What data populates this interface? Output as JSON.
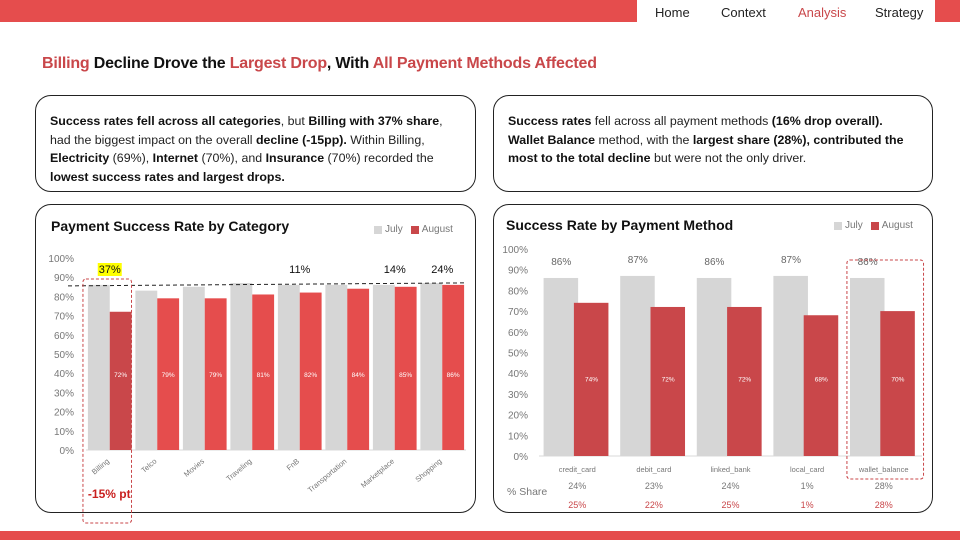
{
  "nav": {
    "items": [
      {
        "label": "Home",
        "active": false
      },
      {
        "label": "Context",
        "active": false
      },
      {
        "label": "Analysis",
        "active": true
      },
      {
        "label": "Strategy",
        "active": false
      }
    ]
  },
  "headline": {
    "part1": "Billing",
    "part2": " Decline Drove the ",
    "part3": "Largest Drop",
    "part4": ", With ",
    "part5": "All Payment Methods Affected"
  },
  "insight_left": {
    "s1_bold": "Success rates fell across all categories",
    "s1_text": ", but ",
    "s2_bold": "Billing  with 37% share",
    "s2_text": ", had the biggest impact on the overall ",
    "s3_bold": "decline (-15pp).",
    "s3_text": " Within Billing, ",
    "s4_bold": "Electricity",
    "s4_text": " (69%), ",
    "s5_bold": "Internet",
    "s5_text": " (70%), and ",
    "s6_bold": "Insurance",
    "s6_text": " (70%) recorded the ",
    "s7_bold": "lowest success rates and largest drops."
  },
  "insight_right": {
    "s1_bold": "Success rates",
    "s1_text": " fell across all payment methods ",
    "s2_bold": "(16% drop overall).",
    "s3_bold": "Wallet Balance",
    "s3_text": " method, with the ",
    "s4_bold": "largest share (28%), contributed the most to the total decline",
    "s4_text": " but were not the only driver."
  },
  "colors": {
    "brand": "#e54d4d",
    "accent_text": "#c9474a",
    "july": "#d6d6d6",
    "august": "#e54d4d",
    "august_dark": "#c9474a",
    "highlight": "#ffff00"
  },
  "chart_data": [
    {
      "type": "bar",
      "title": "Payment Success Rate by Category",
      "categories": [
        "Billing",
        "Telco",
        "Movies",
        "Traveling",
        "FnB",
        "Transportation",
        "Marketplace",
        "Shopping"
      ],
      "series": [
        {
          "name": "July",
          "values": [
            86,
            83,
            85,
            87,
            86,
            86,
            86,
            87
          ]
        },
        {
          "name": "August",
          "values": [
            72,
            79,
            79,
            81,
            82,
            84,
            85,
            86
          ]
        }
      ],
      "data_labels_august": [
        "72%",
        "79%",
        "79%",
        "81%",
        "82%",
        "84%",
        "85%",
        "86%"
      ],
      "share_annotations": [
        {
          "category": "Billing",
          "label": "37%",
          "highlighted": true
        },
        {
          "category": "FnB",
          "label": "11%",
          "highlighted": false
        },
        {
          "category": "Marketplace",
          "label": "14%",
          "highlighted": false
        },
        {
          "category": "Shopping",
          "label": "24%",
          "highlighted": false
        }
      ],
      "reference_line": {
        "value": 86,
        "style": "dashed"
      },
      "callout": {
        "category": "Billing",
        "label": "-15% pt"
      },
      "ylim": [
        0,
        100
      ],
      "yticks": [
        "0%",
        "10%",
        "20%",
        "30%",
        "40%",
        "50%",
        "60%",
        "70%",
        "80%",
        "90%",
        "100%"
      ],
      "xlabel": "",
      "ylabel": "",
      "legend": [
        "July",
        "August"
      ],
      "legend_position": "top-right",
      "grid": false
    },
    {
      "type": "bar",
      "title": "Success Rate by Payment Method",
      "categories": [
        "credit_card",
        "debit_card",
        "linked_bank",
        "local_card",
        "wallet_balance"
      ],
      "series": [
        {
          "name": "July",
          "values": [
            86,
            87,
            86,
            87,
            86
          ]
        },
        {
          "name": "August",
          "values": [
            74,
            72,
            72,
            68,
            70
          ]
        }
      ],
      "data_labels_july": [
        "86%",
        "87%",
        "86%",
        "87%",
        "86%"
      ],
      "data_labels_august": [
        "74%",
        "72%",
        "72%",
        "68%",
        "70%"
      ],
      "share_row_label": "% Share",
      "share_july": [
        "24%",
        "23%",
        "24%",
        "1%",
        "28%"
      ],
      "share_august": [
        "25%",
        "22%",
        "25%",
        "1%",
        "28%"
      ],
      "highlighted_category": "wallet_balance",
      "ylim": [
        0,
        100
      ],
      "yticks": [
        "0%",
        "10%",
        "20%",
        "30%",
        "40%",
        "50%",
        "60%",
        "70%",
        "80%",
        "90%",
        "100%"
      ],
      "xlabel": "",
      "ylabel": "",
      "legend": [
        "July",
        "August"
      ],
      "legend_position": "top-right",
      "grid": false
    }
  ]
}
